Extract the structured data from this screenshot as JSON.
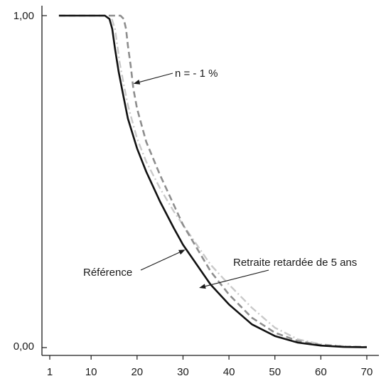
{
  "chart_data": {
    "type": "line",
    "title": "",
    "xlabel": "",
    "ylabel": "",
    "xlim": [
      1,
      70
    ],
    "ylim": [
      0,
      1
    ],
    "x_ticks": [
      1,
      10,
      20,
      30,
      40,
      50,
      60,
      70
    ],
    "x_tick_labels": [
      "1",
      "10",
      "20",
      "30",
      "40",
      "50",
      "60",
      "70"
    ],
    "y_ticks": [
      0,
      1
    ],
    "y_tick_labels": [
      "0,00",
      "1,00"
    ],
    "grid": false,
    "legend": "none",
    "series": [
      {
        "name": "Référence",
        "style": "solid",
        "color": "#111111",
        "x": [
          3,
          13,
          14,
          14.6,
          15.2,
          16,
          17,
          18,
          20,
          22,
          25,
          28,
          30,
          33,
          36,
          40,
          45,
          50,
          55,
          60,
          65,
          70
        ],
        "y": [
          1.0,
          1.0,
          0.99,
          0.96,
          0.9,
          0.83,
          0.76,
          0.69,
          0.6,
          0.53,
          0.44,
          0.36,
          0.31,
          0.25,
          0.19,
          0.13,
          0.07,
          0.035,
          0.015,
          0.006,
          0.002,
          0.001
        ]
      },
      {
        "name": "n = - 1 %",
        "style": "dashed",
        "color": "#8e8e8e",
        "x": [
          3,
          16.4,
          17.1,
          17.6,
          18,
          18.6,
          19.2,
          20,
          22,
          25,
          28,
          30,
          33,
          36,
          40,
          45,
          50,
          55,
          60,
          65,
          70
        ],
        "y": [
          1.0,
          1.0,
          0.99,
          0.96,
          0.91,
          0.85,
          0.78,
          0.72,
          0.62,
          0.52,
          0.43,
          0.37,
          0.3,
          0.23,
          0.16,
          0.09,
          0.045,
          0.02,
          0.008,
          0.003,
          0.002
        ]
      },
      {
        "name": "Retraite retardée de 5 ans",
        "style": "dashdot",
        "color": "#c9c9c9",
        "x": [
          14.5,
          15.2,
          15.7,
          16.2,
          17,
          18,
          20,
          22,
          25,
          28,
          30,
          33,
          36,
          40,
          45,
          50,
          55,
          60,
          65,
          70
        ],
        "y": [
          0.99,
          0.96,
          0.91,
          0.86,
          0.8,
          0.73,
          0.63,
          0.56,
          0.48,
          0.41,
          0.37,
          0.31,
          0.25,
          0.19,
          0.12,
          0.06,
          0.025,
          0.01,
          0.004,
          0.002
        ]
      }
    ],
    "annotations": [
      {
        "text": "n = - 1 %",
        "series": 1,
        "x": 19.2,
        "y": 0.795
      },
      {
        "text": "Référence",
        "series": 0,
        "x": 30.5,
        "y": 0.295
      },
      {
        "text": "Retraite retardée de 5 ans",
        "series": 2,
        "x": 33.5,
        "y": 0.18
      }
    ]
  }
}
